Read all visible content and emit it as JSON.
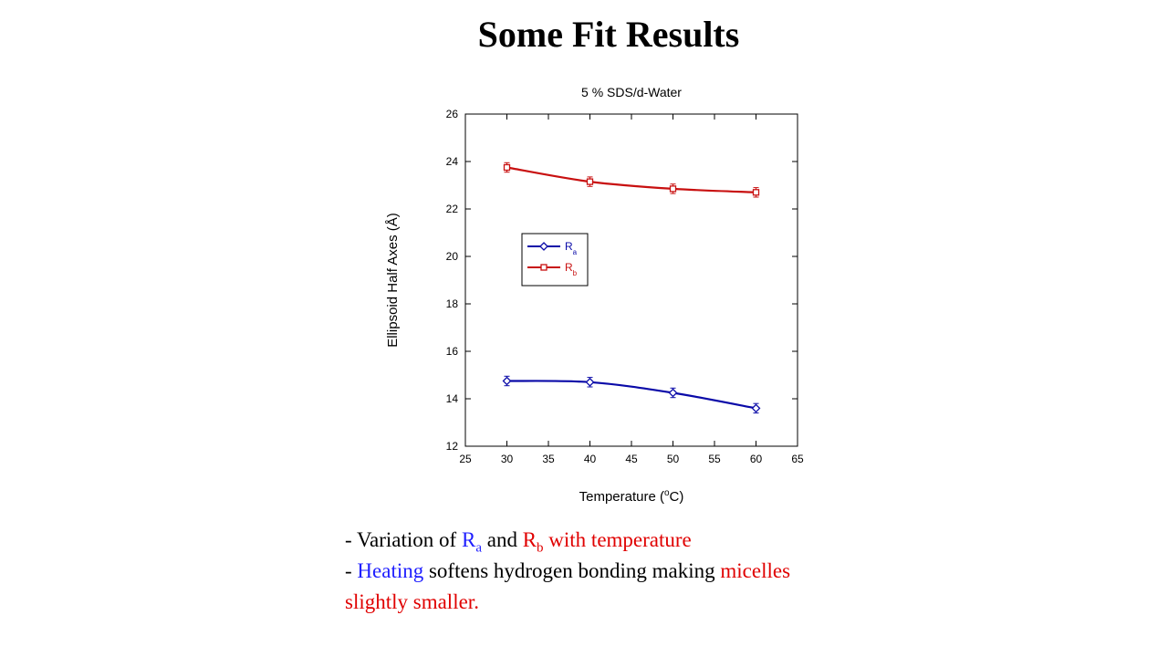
{
  "slide": {
    "title": "Some Fit Results"
  },
  "chart_data": {
    "type": "line",
    "title": "5 % SDS/d-Water",
    "xlabel_prefix": "Temperature (",
    "xlabel_sup": "o",
    "xlabel_suffix": "C)",
    "ylabel": "Ellipsoid Half Axes (Å)",
    "xlim": [
      25,
      65
    ],
    "ylim": [
      12,
      26
    ],
    "xticks": [
      25,
      30,
      35,
      40,
      45,
      50,
      55,
      60,
      65
    ],
    "yticks": [
      12,
      14,
      16,
      18,
      20,
      22,
      24,
      26
    ],
    "grid": false,
    "legend_placement": "center-left",
    "series": [
      {
        "name": "R",
        "name_sub": "a",
        "color": "#0a0aa8",
        "marker": "diamond",
        "x": [
          30,
          40,
          50,
          60
        ],
        "y": [
          14.75,
          14.7,
          14.25,
          13.6
        ],
        "yerr": [
          0.2,
          0.2,
          0.2,
          0.2
        ]
      },
      {
        "name": "R",
        "name_sub": "b",
        "color": "#c81010",
        "marker": "square",
        "x": [
          30,
          40,
          50,
          60
        ],
        "y": [
          23.75,
          23.15,
          22.85,
          22.7
        ],
        "yerr": [
          0.2,
          0.2,
          0.2,
          0.2
        ]
      }
    ]
  },
  "notes": {
    "line1": {
      "dash": "- Variation of ",
      "ra_main": "R",
      "ra_sub": "a",
      "and": " and ",
      "rb_main": "R",
      "rb_sub": "b",
      "tail": " with temperature"
    },
    "line2": {
      "dash": "- ",
      "heating": "Heating",
      "middle": " softens hydrogen bonding making ",
      "micelles": "micelles",
      "end": "slightly smaller."
    }
  },
  "colors": {
    "blue_text": "#1f1fff",
    "red_text": "#e00000"
  }
}
